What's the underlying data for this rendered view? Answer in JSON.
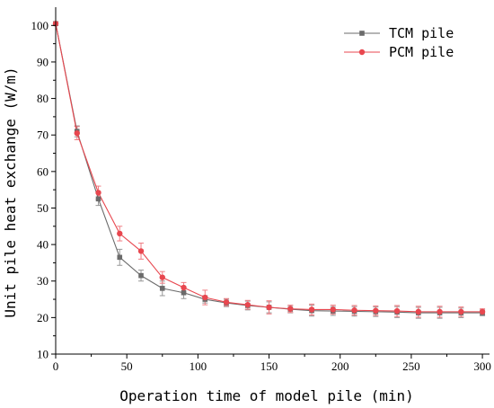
{
  "chart_data": {
    "type": "line",
    "xlabel": "Operation time of model pile (min)",
    "ylabel": "Unit pile heat exchange (W/m)",
    "xlim": [
      0,
      305
    ],
    "ylim": [
      10,
      105
    ],
    "xticks": [
      0,
      50,
      100,
      150,
      200,
      250,
      300
    ],
    "yticks": [
      10,
      20,
      30,
      40,
      50,
      60,
      70,
      80,
      90,
      100
    ],
    "grid": false,
    "legend_position": "top-right",
    "x": [
      0,
      15,
      30,
      45,
      60,
      75,
      90,
      105,
      120,
      135,
      150,
      165,
      180,
      195,
      210,
      225,
      240,
      255,
      270,
      285,
      300
    ],
    "series": [
      {
        "name": "TCM pile",
        "color": "#6b6b6b",
        "marker": "square",
        "values": [
          100.5,
          71,
          52.5,
          36.5,
          31.5,
          28,
          26.8,
          25,
          24,
          23.3,
          22.8,
          22.3,
          21.9,
          21.8,
          21.7,
          21.6,
          21.5,
          21.3,
          21.3,
          21.3,
          21.3
        ],
        "errors": [
          0.5,
          1.5,
          1.8,
          2.2,
          1.5,
          2.0,
          1.6,
          1.0,
          1.0,
          1.2,
          1.5,
          1.0,
          1.5,
          1.2,
          1.3,
          1.3,
          1.5,
          1.5,
          1.5,
          1.3,
          0.8
        ]
      },
      {
        "name": "PCM pile",
        "color": "#e8474f",
        "marker": "circle",
        "values": [
          100.5,
          70.5,
          54.2,
          43,
          38.2,
          31,
          28.2,
          25.5,
          24.2,
          23.5,
          22.8,
          22.4,
          22.2,
          22.2,
          22.0,
          21.9,
          21.8,
          21.6,
          21.6,
          21.6,
          21.6
        ],
        "errors": [
          0.5,
          1.8,
          1.8,
          2.0,
          2.2,
          1.6,
          1.4,
          2.0,
          1.0,
          1.2,
          1.8,
          1.0,
          1.5,
          1.2,
          1.3,
          1.3,
          1.5,
          1.5,
          1.5,
          1.3,
          0.8
        ]
      }
    ]
  }
}
